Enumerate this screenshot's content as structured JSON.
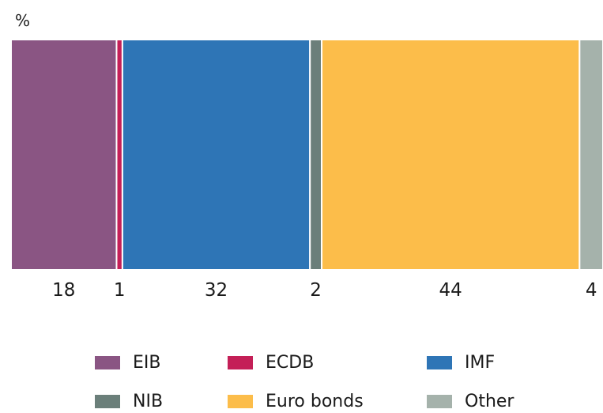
{
  "chart_data": {
    "type": "bar",
    "orientation": "stacked-horizontal-100",
    "unit_label": "%",
    "title": "",
    "xlabel": "",
    "ylabel": "",
    "series": [
      {
        "name": "EIB",
        "value": 18,
        "color": "#8a5583"
      },
      {
        "name": "ECDB",
        "value": 1,
        "color": "#c41f57"
      },
      {
        "name": "IMF",
        "value": 32,
        "color": "#2e75b6"
      },
      {
        "name": "NIB",
        "value": 2,
        "color": "#6b7f7a"
      },
      {
        "name": "Euro bonds",
        "value": 44,
        "color": "#fcbd4a"
      },
      {
        "name": "Other",
        "value": 4,
        "color": "#a5b2ab"
      }
    ],
    "legend": "bottom"
  }
}
